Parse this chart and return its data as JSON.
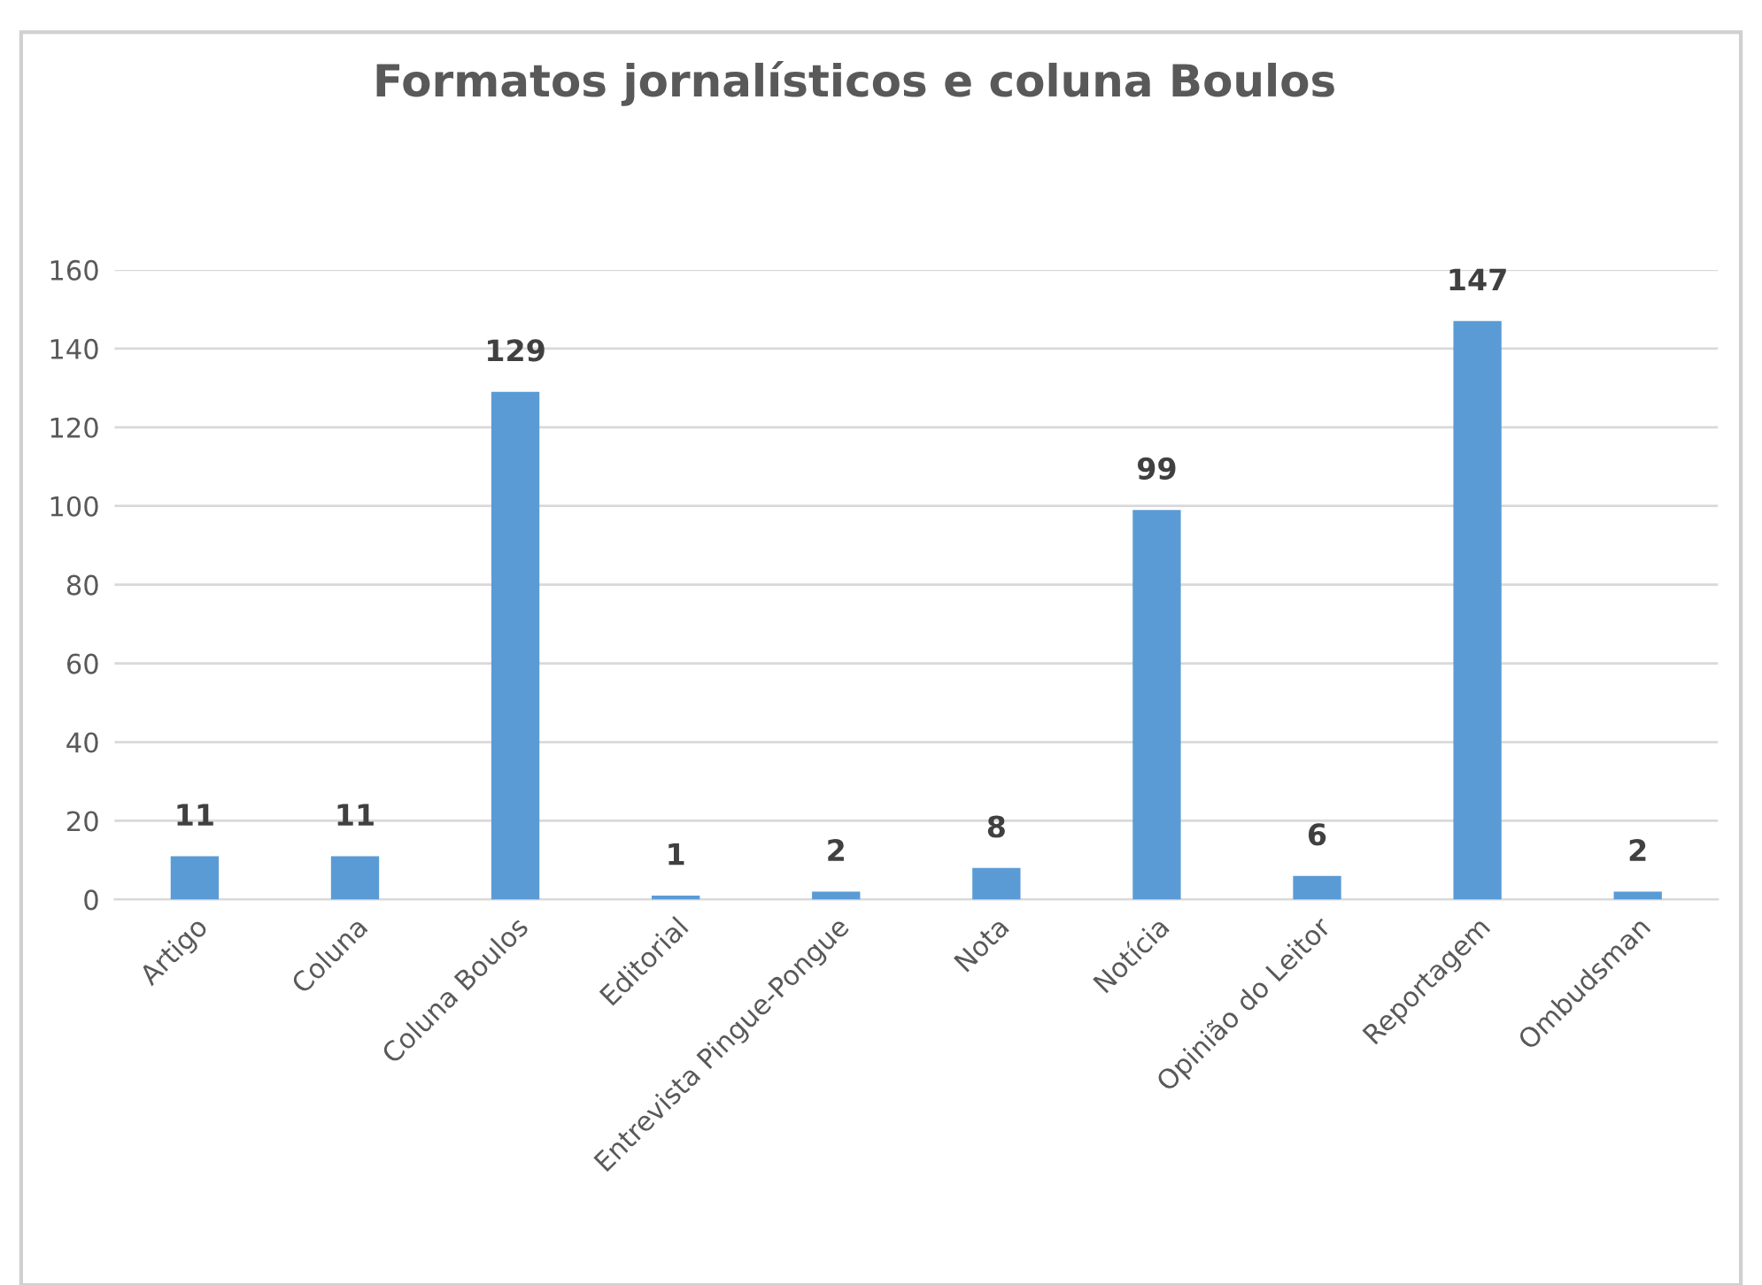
{
  "chart_data": {
    "type": "bar",
    "title": "Formatos jornalísticos e coluna Boulos",
    "categories": [
      "Artigo",
      "Coluna",
      "Coluna Boulos",
      "Editorial",
      "Entrevista Pingue-Pongue",
      "Nota",
      "Notícia",
      "Opinião do Leitor",
      "Reportagem",
      "Ombudsman"
    ],
    "values": [
      11,
      11,
      129,
      1,
      2,
      8,
      99,
      6,
      147,
      2
    ],
    "color": "#5b9bd5",
    "ylim": [
      0,
      160
    ],
    "yticks": [
      0,
      20,
      40,
      60,
      80,
      100,
      120,
      140,
      160
    ],
    "grid": "y",
    "data_labels": true,
    "legend": false
  }
}
